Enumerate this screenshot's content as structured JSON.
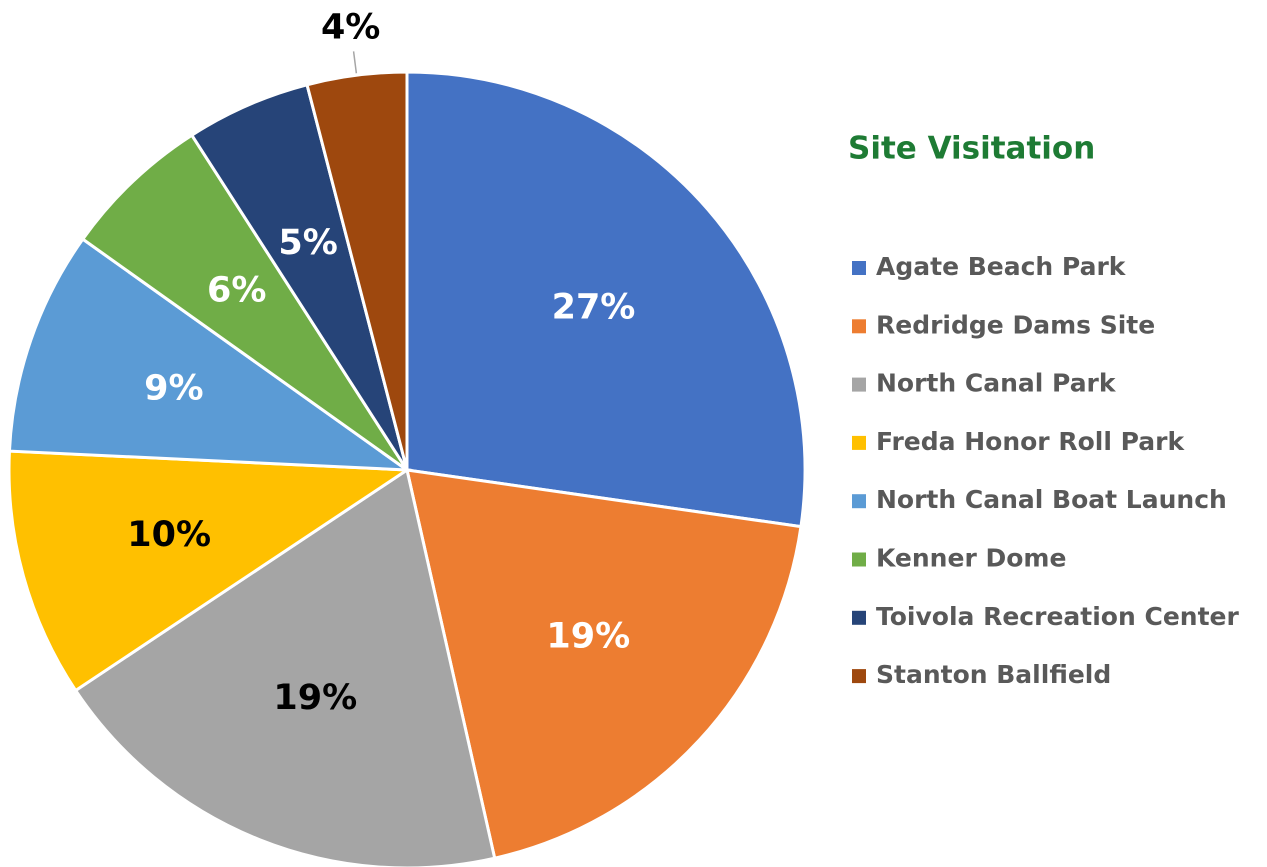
{
  "chart_data": {
    "type": "pie",
    "title": "Site Visitation",
    "categories": [
      "Agate Beach Park",
      "Redridge Dams Site",
      "North Canal Park",
      "Freda Honor Roll Park",
      "North Canal Boat Launch",
      "Kenner Dome",
      "Toivola Recreation Center",
      "Stanton Ballfield"
    ],
    "values": [
      27,
      19,
      19,
      10,
      9,
      6,
      5,
      4
    ],
    "value_labels": [
      "27%",
      "19%",
      "19%",
      "10%",
      "9%",
      "6%",
      "5%",
      "4%"
    ],
    "colors": [
      "#4472c4",
      "#ed7d31",
      "#a5a5a5",
      "#ffc000",
      "#5b9bd5",
      "#70ad47",
      "#264478",
      "#9e480e"
    ],
    "legend": "right"
  }
}
